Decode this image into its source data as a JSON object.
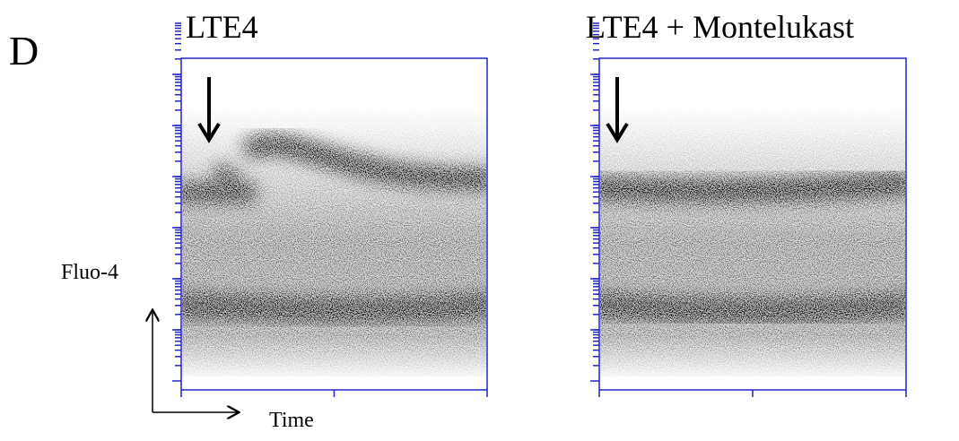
{
  "panel_label": "D",
  "plots": [
    {
      "title": "LTE4"
    },
    {
      "title": "LTE4 + Montelukast"
    }
  ],
  "y_axis_label": "Fluo-4",
  "x_axis_label": "Time"
}
